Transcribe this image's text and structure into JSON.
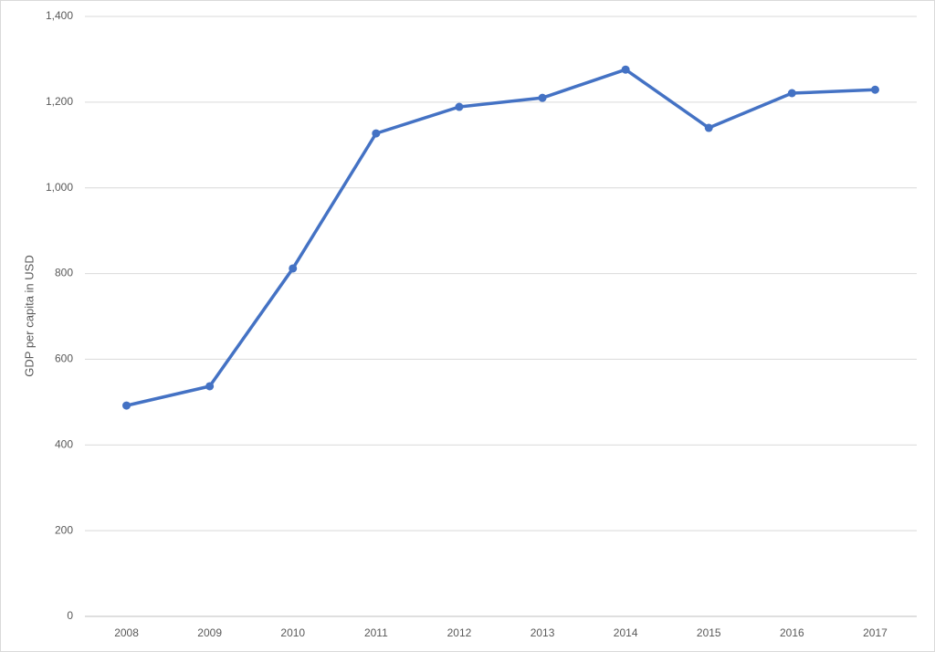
{
  "chart_data": {
    "type": "line",
    "y_label": "GDP per capita in USD",
    "categories": [
      "2008",
      "2009",
      "2010",
      "2011",
      "2012",
      "2013",
      "2014",
      "2015",
      "2016",
      "2017"
    ],
    "series": [
      {
        "name": "GDP per capita",
        "color": "#4472c4",
        "values": [
          492,
          537,
          812,
          1127,
          1189,
          1210,
          1276,
          1140,
          1221,
          1229
        ]
      }
    ],
    "ylim": [
      0,
      1400
    ],
    "yticks": [
      0,
      200,
      400,
      600,
      800,
      {
        "value": 1000,
        "label": "1,000"
      },
      {
        "value": 1200,
        "label": "1,200"
      },
      {
        "value": 1400,
        "label": "1,400"
      }
    ],
    "grid": true
  }
}
